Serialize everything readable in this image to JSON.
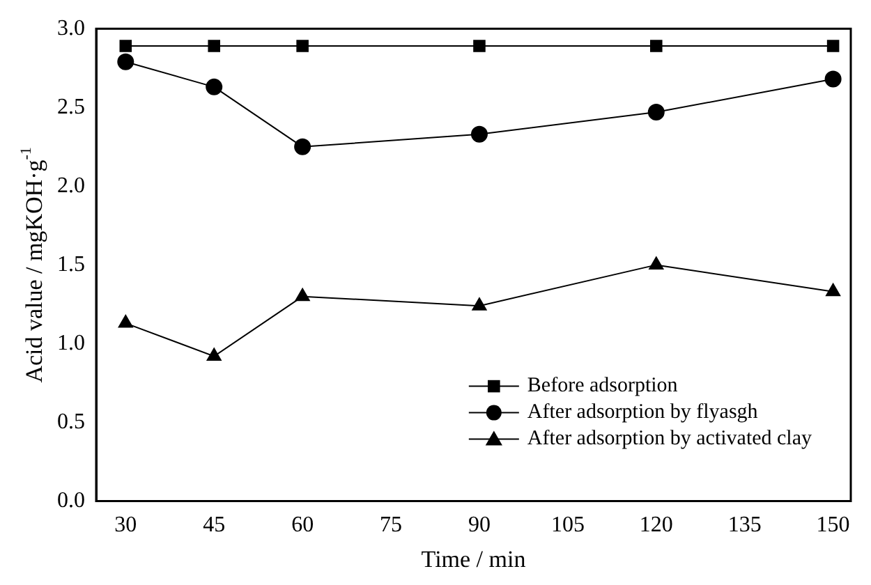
{
  "chart_data": {
    "type": "line",
    "xlabel": "Time / min",
    "ylabel": "Acid value / mgKOH·g$^{-1}$",
    "x": [
      30,
      45,
      60,
      90,
      120,
      150
    ],
    "series": [
      {
        "name": "Before adsorption",
        "color": "#000000",
        "marker": "square",
        "values": [
          2.89,
          2.89,
          2.89,
          2.89,
          2.89,
          2.89
        ]
      },
      {
        "name": "After adsorption by flyasgh",
        "color": "#000000",
        "marker": "circle",
        "values": [
          2.79,
          2.63,
          2.25,
          2.33,
          2.47,
          2.68
        ]
      },
      {
        "name": "After adsorption by activated clay",
        "color": "#000000",
        "marker": "triangle",
        "values": [
          1.13,
          0.92,
          1.3,
          1.24,
          1.5,
          1.33
        ]
      }
    ],
    "xlim": [
      25,
      153
    ],
    "xticks": [
      30,
      45,
      60,
      75,
      90,
      105,
      120,
      135,
      150
    ],
    "ylim": [
      0,
      3
    ],
    "yticks": [
      {
        "value": 0,
        "label": "0.0"
      },
      {
        "value": 0.5,
        "label": "0.5"
      },
      {
        "value": 1,
        "label": "1.0"
      },
      {
        "value": 1.5,
        "label": "1.5"
      },
      {
        "value": 2,
        "label": "2.0"
      },
      {
        "value": 2.5,
        "label": "2.5"
      },
      {
        "value": 3,
        "label": "3.0"
      }
    ],
    "grid": false,
    "legend": "bottom right",
    "line_style": "solid"
  }
}
